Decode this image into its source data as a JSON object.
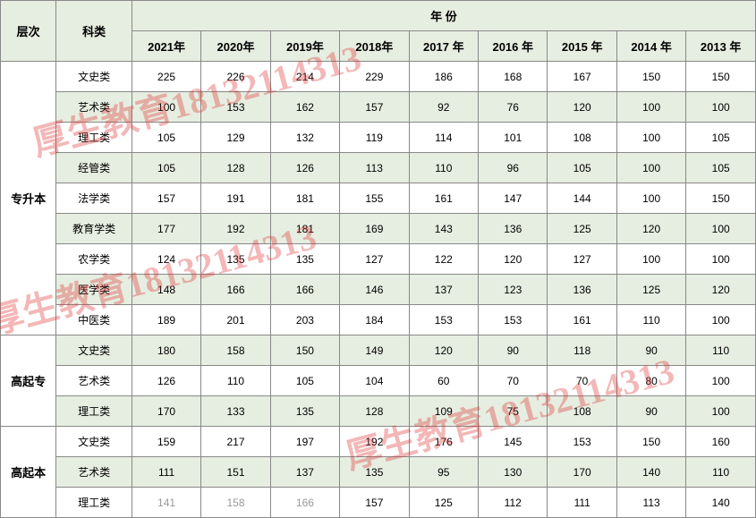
{
  "headers": {
    "level": "层次",
    "category": "科类",
    "year_header": "年  份",
    "years": [
      "2021年",
      "2020年",
      "2019年",
      "2018年",
      "2017 年",
      "2016 年",
      "2015 年",
      "2014 年",
      "2013 年"
    ]
  },
  "sections": [
    {
      "level": "专升本",
      "rows": [
        {
          "category": "文史类",
          "values": [
            "225",
            "226",
            "214",
            "229",
            "186",
            "168",
            "167",
            "150",
            "150"
          ],
          "parity": "odd"
        },
        {
          "category": "艺术类",
          "values": [
            "100",
            "153",
            "162",
            "157",
            "92",
            "76",
            "120",
            "100",
            "100"
          ],
          "parity": "even"
        },
        {
          "category": "理工类",
          "values": [
            "105",
            "129",
            "132",
            "119",
            "114",
            "101",
            "108",
            "100",
            "105"
          ],
          "parity": "odd"
        },
        {
          "category": "经管类",
          "values": [
            "105",
            "128",
            "126",
            "113",
            "110",
            "96",
            "105",
            "100",
            "105"
          ],
          "parity": "even"
        },
        {
          "category": "法学类",
          "values": [
            "157",
            "191",
            "181",
            "155",
            "161",
            "147",
            "144",
            "100",
            "150"
          ],
          "parity": "odd"
        },
        {
          "category": "教育学类",
          "values": [
            "177",
            "192",
            "181",
            "169",
            "143",
            "136",
            "125",
            "120",
            "100"
          ],
          "parity": "even"
        },
        {
          "category": "农学类",
          "values": [
            "124",
            "135",
            "135",
            "127",
            "122",
            "120",
            "127",
            "100",
            "100"
          ],
          "parity": "odd"
        },
        {
          "category": "医学类",
          "values": [
            "148",
            "166",
            "166",
            "146",
            "137",
            "123",
            "136",
            "125",
            "120"
          ],
          "parity": "even"
        },
        {
          "category": "中医类",
          "values": [
            "189",
            "201",
            "203",
            "184",
            "153",
            "153",
            "161",
            "110",
            "100"
          ],
          "parity": "odd"
        }
      ]
    },
    {
      "level": "高起专",
      "rows": [
        {
          "category": "文史类",
          "values": [
            "180",
            "158",
            "150",
            "149",
            "120",
            "90",
            "118",
            "90",
            "110"
          ],
          "parity": "even"
        },
        {
          "category": "艺术类",
          "values": [
            "126",
            "110",
            "105",
            "104",
            "60",
            "70",
            "70",
            "80",
            "100"
          ],
          "parity": "odd"
        },
        {
          "category": "理工类",
          "values": [
            "170",
            "133",
            "135",
            "128",
            "109",
            "75",
            "108",
            "90",
            "100"
          ],
          "parity": "even"
        }
      ]
    },
    {
      "level": "高起本",
      "rows": [
        {
          "category": "文史类",
          "values": [
            "159",
            "217",
            "197",
            "192",
            "176",
            "145",
            "153",
            "150",
            "160"
          ],
          "parity": "odd"
        },
        {
          "category": "艺术类",
          "values": [
            "111",
            "151",
            "137",
            "135",
            "95",
            "130",
            "170",
            "140",
            "110"
          ],
          "parity": "even"
        },
        {
          "category": "理工类",
          "values": [
            "141",
            "158",
            "166",
            "157",
            "125",
            "112",
            "111",
            "113",
            "140"
          ],
          "parity": "odd",
          "gray_cols": [
            0,
            1,
            2
          ]
        }
      ]
    }
  ],
  "watermark": "厚生教育18132114313",
  "colors": {
    "header_bg": "#e6eee1",
    "even_bg": "#e6eee1",
    "odd_bg": "#ffffff",
    "border": "#888888",
    "watermark": "rgba(220,50,50,0.35)",
    "gray_text": "#999999"
  }
}
